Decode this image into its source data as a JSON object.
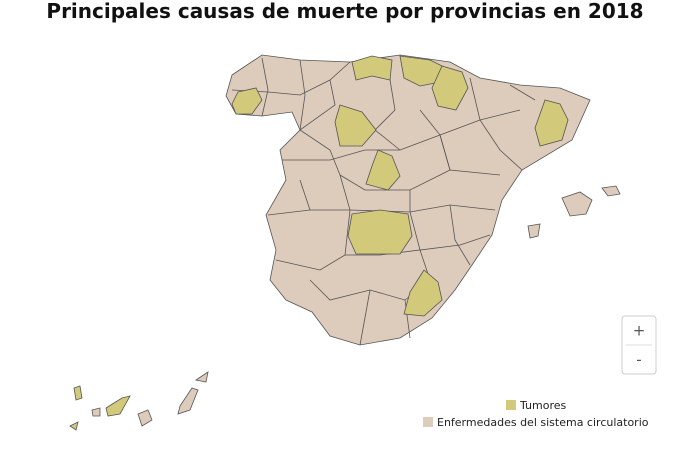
{
  "title": "Principales causas de muerte por provincias en 2018",
  "legend": [
    {
      "label": "Tumores",
      "color": "#d2c97a"
    },
    {
      "label": "Enfermedades del sistema circulatorio",
      "color": "#ddcbbb"
    }
  ],
  "zoom_controls": {
    "zoom_in": "+",
    "zoom_out": "-"
  }
}
